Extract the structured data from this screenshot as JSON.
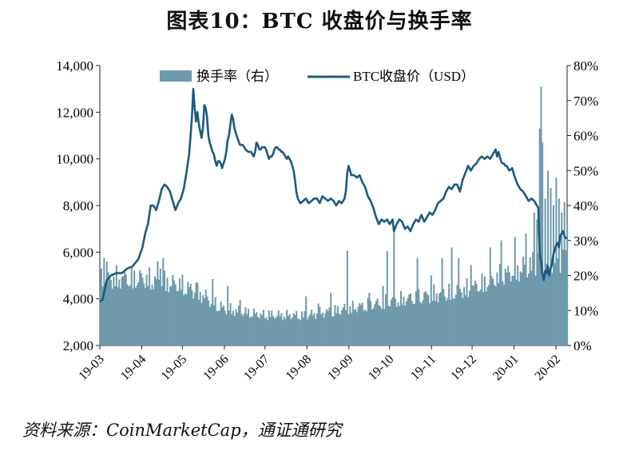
{
  "title": "图表10：BTC 收盘价与换手率",
  "source": "资料来源：CoinMarketCap，通证通研究",
  "chart_data": {
    "type": "bar+line",
    "x_ticks": [
      "19-03",
      "19-04",
      "19-05",
      "19-06",
      "19-07",
      "19-08",
      "19-09",
      "19-10",
      "19-11",
      "19-12",
      "20-01",
      "20-02"
    ],
    "y_left": {
      "ylim": [
        2000,
        14000
      ],
      "ticks": [
        "2,000",
        "4,000",
        "6,000",
        "8,000",
        "10,000",
        "12,000",
        "14,000"
      ]
    },
    "y_right": {
      "ylim": [
        0,
        80
      ],
      "ticks": [
        "0%",
        "10%",
        "20%",
        "30%",
        "40%",
        "50%",
        "60%",
        "70%",
        "80%"
      ]
    },
    "legend": [
      "换手率（右）",
      "BTC收盘价（USD）"
    ],
    "legend_position": "top-center",
    "colors": {
      "turnover": "#6f9aab",
      "price": "#1a5c7e"
    },
    "price_anchors": [
      [
        0,
        3900
      ],
      [
        2,
        3950
      ],
      [
        5,
        4800
      ],
      [
        8,
        5000
      ],
      [
        12,
        5100
      ],
      [
        16,
        5100
      ],
      [
        20,
        5300
      ],
      [
        24,
        5400
      ],
      [
        28,
        5700
      ],
      [
        31,
        6200
      ],
      [
        33,
        6800
      ],
      [
        35,
        7200
      ],
      [
        37,
        8000
      ],
      [
        39,
        8000
      ],
      [
        41,
        7800
      ],
      [
        43,
        8200
      ],
      [
        45,
        8700
      ],
      [
        47,
        8900
      ],
      [
        49,
        8800
      ],
      [
        51,
        8600
      ],
      [
        53,
        8200
      ],
      [
        55,
        7800
      ],
      [
        57,
        8100
      ],
      [
        59,
        8300
      ],
      [
        61,
        8700
      ],
      [
        63,
        9400
      ],
      [
        65,
        10200
      ],
      [
        66,
        11000
      ],
      [
        67,
        11800
      ],
      [
        68,
        13000
      ],
      [
        69,
        12200
      ],
      [
        70,
        11600
      ],
      [
        71,
        12000
      ],
      [
        72,
        11500
      ],
      [
        73,
        11200
      ],
      [
        74,
        10900
      ],
      [
        75,
        11300
      ],
      [
        76,
        12300
      ],
      [
        77,
        12200
      ],
      [
        78,
        11800
      ],
      [
        79,
        11000
      ],
      [
        80,
        10700
      ],
      [
        81,
        10500
      ],
      [
        82,
        10300
      ],
      [
        83,
        10200
      ],
      [
        84,
        9900
      ],
      [
        85,
        9700
      ],
      [
        86,
        9900
      ],
      [
        87,
        9900
      ],
      [
        88,
        9800
      ],
      [
        89,
        9600
      ],
      [
        90,
        9800
      ],
      [
        91,
        10000
      ],
      [
        92,
        10300
      ],
      [
        93,
        10800
      ],
      [
        94,
        11000
      ],
      [
        95,
        11500
      ],
      [
        96,
        11900
      ],
      [
        97,
        11700
      ],
      [
        98,
        11300
      ],
      [
        100,
        10900
      ],
      [
        102,
        10600
      ],
      [
        104,
        10600
      ],
      [
        106,
        10400
      ],
      [
        108,
        10300
      ],
      [
        110,
        10300
      ],
      [
        112,
        10100
      ],
      [
        113,
        10300
      ],
      [
        114,
        10700
      ],
      [
        115,
        10600
      ],
      [
        116,
        10400
      ],
      [
        117,
        10400
      ],
      [
        118,
        10500
      ],
      [
        119,
        10500
      ],
      [
        120,
        10500
      ],
      [
        121,
        10400
      ],
      [
        122,
        10200
      ],
      [
        123,
        10000
      ],
      [
        124,
        10100
      ],
      [
        125,
        10100
      ],
      [
        126,
        10200
      ],
      [
        127,
        10400
      ],
      [
        128,
        10500
      ],
      [
        129,
        10500
      ],
      [
        130,
        10400
      ],
      [
        131,
        10400
      ],
      [
        132,
        10300
      ],
      [
        133,
        10300
      ],
      [
        134,
        10200
      ],
      [
        135,
        10100
      ],
      [
        136,
        10000
      ],
      [
        137,
        10100
      ],
      [
        138,
        10000
      ],
      [
        139,
        9900
      ],
      [
        140,
        9700
      ],
      [
        141,
        9500
      ],
      [
        142,
        9100
      ],
      [
        143,
        8600
      ],
      [
        144,
        8300
      ],
      [
        146,
        8100
      ],
      [
        148,
        8200
      ],
      [
        150,
        8300
      ],
      [
        152,
        8100
      ],
      [
        154,
        8200
      ],
      [
        156,
        8300
      ],
      [
        158,
        8300
      ],
      [
        160,
        8100
      ],
      [
        162,
        8400
      ],
      [
        164,
        8300
      ],
      [
        166,
        8200
      ],
      [
        168,
        8300
      ],
      [
        170,
        8200
      ],
      [
        172,
        8000
      ],
      [
        174,
        8200
      ],
      [
        176,
        8100
      ],
      [
        178,
        8300
      ],
      [
        179,
        8600
      ],
      [
        180,
        9400
      ],
      [
        181,
        9700
      ],
      [
        183,
        9300
      ],
      [
        185,
        9300
      ],
      [
        187,
        9200
      ],
      [
        189,
        9300
      ],
      [
        191,
        9000
      ],
      [
        193,
        8800
      ],
      [
        195,
        8400
      ],
      [
        197,
        8200
      ],
      [
        199,
        7900
      ],
      [
        201,
        7500
      ],
      [
        203,
        7200
      ],
      [
        205,
        7400
      ],
      [
        207,
        7300
      ],
      [
        209,
        7400
      ],
      [
        211,
        7200
      ],
      [
        213,
        7400
      ],
      [
        214,
        6900
      ],
      [
        216,
        7200
      ],
      [
        218,
        7400
      ],
      [
        220,
        7300
      ],
      [
        222,
        7000
      ],
      [
        224,
        7100
      ],
      [
        226,
        6900
      ],
      [
        228,
        7200
      ],
      [
        230,
        7400
      ],
      [
        232,
        7300
      ],
      [
        234,
        7600
      ],
      [
        236,
        7300
      ],
      [
        238,
        7500
      ],
      [
        240,
        7700
      ],
      [
        242,
        7600
      ],
      [
        244,
        7800
      ],
      [
        246,
        8100
      ],
      [
        248,
        8200
      ],
      [
        250,
        8300
      ],
      [
        252,
        8600
      ],
      [
        254,
        8800
      ],
      [
        256,
        8700
      ],
      [
        258,
        8900
      ],
      [
        260,
        8900
      ],
      [
        262,
        8600
      ],
      [
        264,
        9100
      ],
      [
        266,
        9400
      ],
      [
        268,
        9700
      ],
      [
        270,
        9500
      ],
      [
        272,
        9700
      ],
      [
        274,
        9800
      ],
      [
        276,
        10000
      ],
      [
        278,
        10100
      ],
      [
        280,
        10000
      ],
      [
        282,
        10100
      ],
      [
        284,
        10000
      ],
      [
        286,
        10200
      ],
      [
        288,
        10400
      ],
      [
        289,
        10100
      ],
      [
        290,
        10300
      ],
      [
        291,
        10100
      ],
      [
        292,
        9900
      ],
      [
        293,
        9800
      ],
      [
        294,
        9800
      ],
      [
        295,
        9700
      ],
      [
        296,
        9700
      ],
      [
        298,
        9500
      ],
      [
        300,
        9600
      ],
      [
        302,
        9200
      ],
      [
        304,
        8900
      ],
      [
        306,
        8700
      ],
      [
        308,
        8600
      ],
      [
        310,
        8400
      ],
      [
        312,
        8200
      ],
      [
        314,
        8300
      ],
      [
        316,
        8200
      ],
      [
        318,
        8000
      ],
      [
        319,
        7900
      ],
      [
        320,
        6000
      ],
      [
        321,
        5600
      ],
      [
        322,
        5100
      ],
      [
        323,
        4800
      ],
      [
        324,
        5200
      ],
      [
        325,
        5100
      ],
      [
        326,
        5400
      ],
      [
        327,
        5000
      ],
      [
        328,
        5300
      ],
      [
        329,
        5500
      ],
      [
        330,
        5900
      ],
      [
        331,
        6100
      ],
      [
        332,
        6300
      ],
      [
        333,
        6400
      ],
      [
        334,
        6200
      ],
      [
        335,
        6700
      ],
      [
        336,
        6800
      ],
      [
        337,
        6900
      ],
      [
        338,
        6700
      ],
      [
        339,
        6600
      ],
      [
        340,
        6600
      ]
    ],
    "turnover_base": [
      [
        0,
        20
      ],
      [
        30,
        20
      ],
      [
        60,
        18
      ],
      [
        75,
        15
      ],
      [
        90,
        11
      ],
      [
        120,
        9
      ],
      [
        150,
        9
      ],
      [
        180,
        11
      ],
      [
        210,
        13
      ],
      [
        240,
        15
      ],
      [
        270,
        17
      ],
      [
        300,
        22
      ],
      [
        315,
        24
      ],
      [
        330,
        26
      ],
      [
        340,
        25
      ]
    ],
    "turnover_spikes": [
      [
        3,
        25
      ],
      [
        5,
        24
      ],
      [
        42,
        24
      ],
      [
        44,
        22
      ],
      [
        46,
        25
      ],
      [
        70,
        18
      ],
      [
        82,
        19
      ],
      [
        93,
        17
      ],
      [
        102,
        13
      ],
      [
        123,
        10
      ],
      [
        150,
        14
      ],
      [
        159,
        12
      ],
      [
        168,
        15
      ],
      [
        180,
        27
      ],
      [
        196,
        15
      ],
      [
        206,
        17
      ],
      [
        209,
        27
      ],
      [
        214,
        34
      ],
      [
        231,
        25
      ],
      [
        241,
        20
      ],
      [
        249,
        25
      ],
      [
        256,
        28
      ],
      [
        261,
        25
      ],
      [
        270,
        23
      ],
      [
        284,
        28
      ],
      [
        292,
        30
      ],
      [
        302,
        31
      ],
      [
        310,
        32
      ],
      [
        316,
        38
      ],
      [
        318,
        36
      ],
      [
        320,
        62
      ],
      [
        321,
        74
      ],
      [
        322,
        58
      ],
      [
        324,
        42
      ],
      [
        326,
        50
      ],
      [
        328,
        45
      ],
      [
        330,
        40
      ],
      [
        332,
        48
      ],
      [
        334,
        42
      ],
      [
        336,
        38
      ],
      [
        338,
        41
      ],
      [
        340,
        35
      ]
    ]
  }
}
